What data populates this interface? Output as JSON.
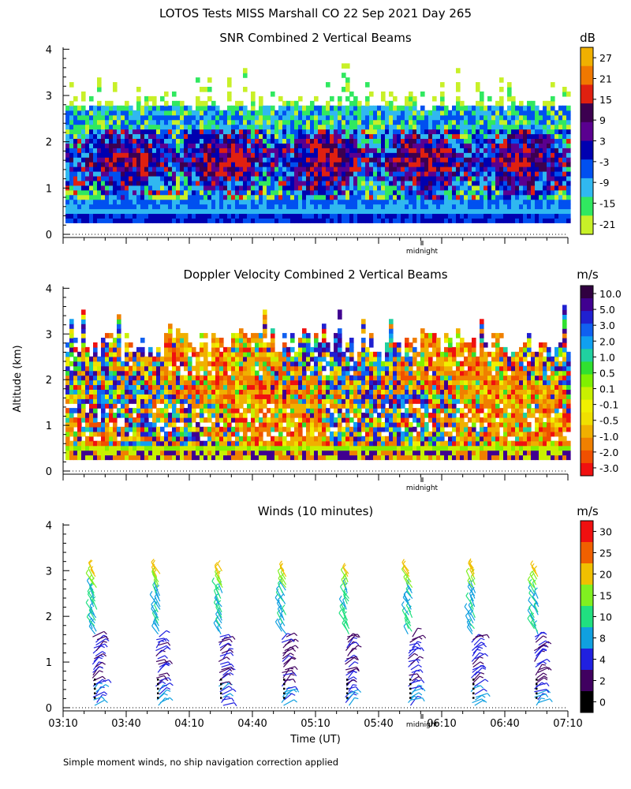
{
  "figure_title": "LOTOS Tests MISS Marshall CO  22 Sep 2021 Day 265",
  "y_axis_label": "Altitude (km)",
  "x_axis_label": "Time (UT)",
  "footnote": "Simple moment winds, no ship navigation correction applied",
  "colors": {
    "snr_scale": [
      "#c8f028",
      "#30e860",
      "#30b8f0",
      "#0050f0",
      "#0000b0",
      "#5a0090",
      "#3c0050",
      "#e02010",
      "#f07800",
      "#f0b000"
    ],
    "doppler_scale": [
      "#f01010",
      "#f05000",
      "#f08000",
      "#f0b000",
      "#f0e000",
      "#f0f000",
      "#c8f000",
      "#80f000",
      "#30e030",
      "#20d0a0",
      "#10a0f0",
      "#1060f0",
      "#2020d0",
      "#400090",
      "#300040"
    ],
    "winds_scale": [
      "#000000",
      "#400060",
      "#2020e0",
      "#10a0e0",
      "#20e080",
      "#80f020",
      "#f0c000",
      "#f06000",
      "#f01010"
    ]
  },
  "chart_data": [
    {
      "type": "heatmap",
      "title": "SNR Combined 2 Vertical Beams",
      "units": "dB",
      "ylim": [
        0,
        4
      ],
      "yticks": [
        "0",
        "1",
        "2",
        "3",
        "4"
      ],
      "xlim": [
        "03:10",
        "07:10"
      ],
      "time_marker": "midnight",
      "colorbar_ticks": [
        "27",
        "21",
        "15",
        "9",
        "3",
        "-3",
        "-9",
        "-15",
        "-21"
      ]
    },
    {
      "type": "heatmap",
      "title": "Doppler Velocity Combined 2 Vertical Beams",
      "units": "m/s",
      "ylim": [
        0,
        4
      ],
      "yticks": [
        "0",
        "1",
        "2",
        "3",
        "4"
      ],
      "xlim": [
        "03:10",
        "07:10"
      ],
      "time_marker": "midnight",
      "colorbar_ticks": [
        "10.0",
        "5.0",
        "3.0",
        "2.0",
        "1.0",
        "0.5",
        "0.1",
        "-0.1",
        "-0.5",
        "-1.0",
        "-2.0",
        "-3.0"
      ]
    },
    {
      "type": "scatter",
      "title": "Winds (10 minutes)",
      "units": "m/s",
      "ylim": [
        0,
        4
      ],
      "yticks": [
        "0",
        "1",
        "2",
        "3",
        "4"
      ],
      "xlim": [
        "03:10",
        "07:10"
      ],
      "time_marker": "midnight",
      "x_tick_labels": [
        "03:10",
        "03:40",
        "04:10",
        "04:40",
        "05:10",
        "05:40",
        "06:10",
        "06:40",
        "07:10"
      ],
      "profile_times": [
        "03:25",
        "03:55",
        "04:25",
        "04:55",
        "05:25",
        "05:55",
        "06:25",
        "06:55"
      ],
      "profile_top_km": [
        3.05,
        3.05,
        3.05,
        3.0,
        2.95,
        3.05,
        3.1,
        3.0
      ],
      "colorbar_ticks": [
        "30",
        "25",
        "20",
        "15",
        "10",
        "8",
        "4",
        "2",
        "0"
      ]
    }
  ]
}
